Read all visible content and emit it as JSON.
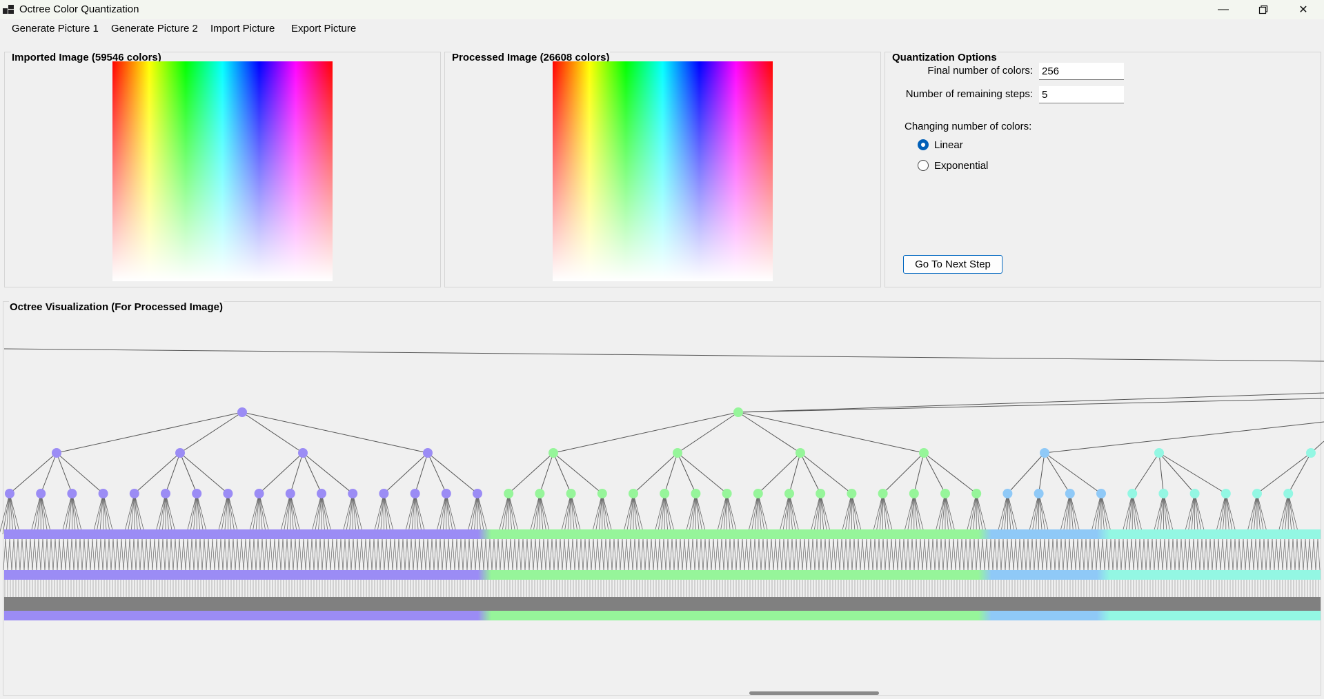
{
  "window": {
    "title": "Octree Color Quantization",
    "minimize_icon": "minimize-icon",
    "restore_icon": "restore-icon",
    "close_icon": "close-icon"
  },
  "menu": {
    "items": [
      "Generate Picture 1",
      "Generate Picture 2",
      "Import Picture",
      "Export Picture"
    ]
  },
  "imported": {
    "title": "Imported Image (59546 colors)"
  },
  "processed": {
    "title": "Processed Image (26608 colors)"
  },
  "options": {
    "title": "Quantization Options",
    "final_colors_label": "Final number of colors:",
    "final_colors_value": "256",
    "remaining_steps_label": "Number of remaining steps:",
    "remaining_steps_value": "5",
    "changing_label": "Changing number of colors:",
    "radio_linear": "Linear",
    "radio_exponential": "Exponential",
    "selected": "Linear",
    "next_button": "Go To Next Step"
  },
  "octree": {
    "title": "Octree Visualization (For Processed Image)",
    "purple_color": "#9b8cf5",
    "green_color": "#96f59a",
    "blue_color": "#8fc9f7",
    "cyan_color": "#93f7e3"
  }
}
